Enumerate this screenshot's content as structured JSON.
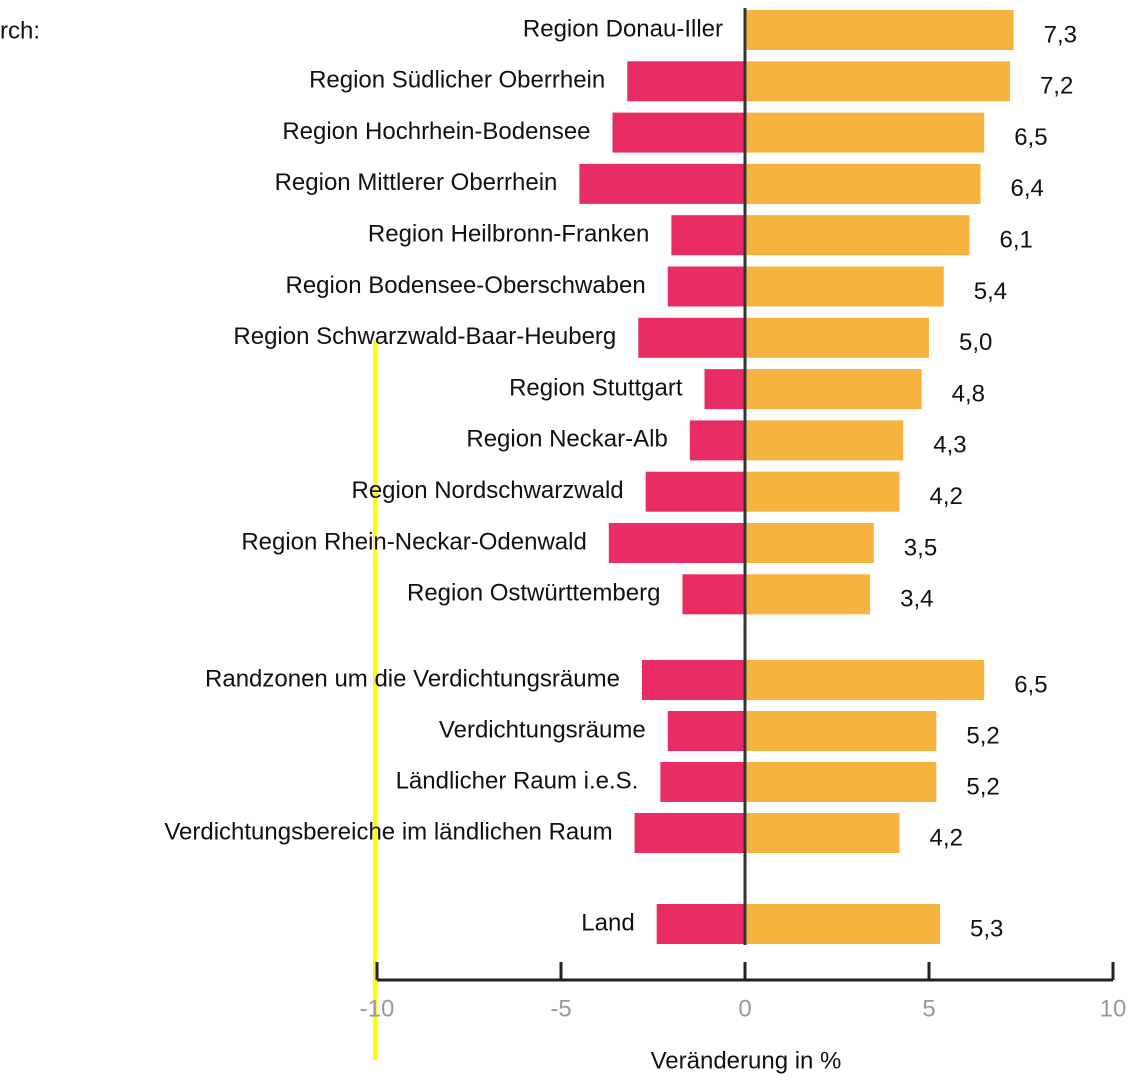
{
  "chart_data": {
    "type": "bar",
    "orientation": "horizontal",
    "subtitle": "rch:",
    "xlabel": "Veränderung in %",
    "categories": [
      "Region Donau-Iller",
      "Region Südlicher Oberrhein",
      "Region Hochrhein-Bodensee",
      "Region Mittlerer Oberrhein",
      "Region Heilbronn-Franken",
      "Region Bodensee-Oberschwaben",
      "Region Schwarzwald-Baar-Heuberg",
      "Region Stuttgart",
      "Region Neckar-Alb",
      "Region Nordschwarzwald",
      "Region Rhein-Neckar-Odenwald",
      "Region Ostwürttemberg",
      "Randzonen um die Verdichtungsräume",
      "Verdichtungsräume",
      "Ländlicher Raum i.e.S.",
      "Verdichtungsbereiche im ländlichen Raum",
      "Land"
    ],
    "series": [
      {
        "color": "#e92c63",
        "values": [
          0.1,
          -3.2,
          -3.6,
          -4.5,
          -2.0,
          -2.1,
          -2.9,
          -1.1,
          -1.5,
          -2.7,
          -3.7,
          -1.7,
          -2.8,
          -2.1,
          -2.3,
          -3.0,
          -2.4
        ]
      },
      {
        "color": "#f4b43f",
        "values": [
          7.3,
          7.2,
          6.5,
          6.4,
          6.1,
          5.4,
          5.0,
          4.8,
          4.3,
          4.2,
          3.5,
          3.4,
          6.5,
          5.2,
          5.2,
          4.2,
          5.3
        ],
        "value_labels": [
          "7,3",
          "7,2",
          "6,5",
          "6,4",
          "6,1",
          "5,4",
          "5,0",
          "4,8",
          "4,3",
          "4,2",
          "3,5",
          "3,4",
          "6,5",
          "5,2",
          "5,2",
          "4,2",
          "5,3"
        ]
      }
    ],
    "xlim": [
      -10,
      10
    ],
    "xticks": [
      -10,
      -5,
      0,
      5,
      10
    ]
  }
}
